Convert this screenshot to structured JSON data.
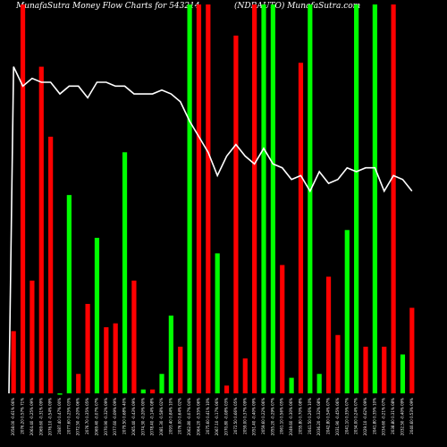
{
  "chart_data": {
    "type": "bar",
    "title": "MunafaSutra  Money  Flow  Charts for 543214",
    "subtitle": "(NDRAUTO) MunafaSutra.com",
    "ylim": [
      0,
      100
    ],
    "colors": {
      "up": "#00ff00",
      "down": "#ff0000",
      "line": "#ffffff",
      "background": "#000000"
    },
    "categories": [
      "2058.00 -0.61% 06%",
      "2076.20 0.57% 71%",
      "2064.40 -0.25% 09%",
      "2069.60 -0.31% 09%",
      "2076.10 -0.54% 09%",
      "2087.40 0.47% 00%",
      "2077.60 0.25% 03%",
      "2072.50 -0.20% 06%",
      "2076.70 0.35% 05%",
      "2069.40 -0.07% 07%",
      "2070.90 -0.32% 09%",
      "2077.60 -0.09% 09%",
      "2079.50 0.68% 40%",
      "2065.40 -0.43% 09%",
      "2074.30 -0.20% 00%",
      "2078.40 -0.14% 08%",
      "2081.30 -0.58% 02%",
      "2093.40 0.84% 10%",
      "2076.00 0.64% 02%",
      "2062.80 -0.07% 04%",
      "2064.20 -0.55% 06%",
      "2075.60 0.41% 10%",
      "2067.10 -0.17% 06%",
      "2070.80 -0.08% 03%",
      "2072.50 0.66% 05%",
      "2059.00 0.37% 09%",
      "2051.40 -0.40% 09%",
      "2059.60 0.22% 06%",
      "2055.20 -0.29% 07%",
      "2061.10 0.56% 05%",
      "2049.60 -0.30% 06%",
      "2055.80 0.70% 08%",
      "2041.50 0.26% 10%",
      "2036.20 -0.32% 08%",
      "2042.80 0.54% 07%",
      "2031.90 -0.45% 06%",
      "2041.10 0.35% 07%",
      "2034.00 0.24% 07%",
      "2029.10 -0.62% 09%",
      "2041.80 0.35% 10%",
      "2034.60 -0.21% 07%",
      "2038.80 0.31% 08%",
      "2032.50 -0.40% 09%",
      "2040.60 0.53% 09%"
    ],
    "series": [
      {
        "values": [
          16,
          100,
          29,
          84,
          66,
          0,
          51,
          5,
          23,
          40,
          17,
          18,
          62,
          29,
          1,
          1,
          5,
          20,
          12,
          100,
          100,
          100,
          36,
          2,
          92,
          9,
          100,
          100,
          100,
          33,
          4,
          85,
          100,
          5,
          30,
          15,
          42,
          100,
          12,
          100,
          12,
          100,
          10,
          22
        ],
        "direction": [
          "down",
          "down",
          "down",
          "down",
          "down",
          "up",
          "up",
          "down",
          "down",
          "up",
          "down",
          "down",
          "up",
          "down",
          "up",
          "down",
          "up",
          "up",
          "down",
          "up",
          "down",
          "down",
          "up",
          "down",
          "down",
          "down",
          "down",
          "up",
          "up",
          "down",
          "up",
          "down",
          "up",
          "up",
          "down",
          "down",
          "up",
          "up",
          "down",
          "up",
          "down",
          "down",
          "up",
          "down"
        ]
      },
      {
        "type": "line",
        "values": [
          84,
          79,
          81,
          80,
          80,
          77,
          79,
          79,
          76,
          80,
          80,
          79,
          79,
          77,
          77,
          77,
          78,
          77,
          75,
          70,
          66,
          62,
          56,
          61,
          64,
          61,
          59,
          63,
          59,
          58,
          55,
          56,
          52,
          57,
          54,
          55,
          58,
          57,
          58,
          58,
          52,
          56,
          55,
          52
        ]
      }
    ]
  }
}
